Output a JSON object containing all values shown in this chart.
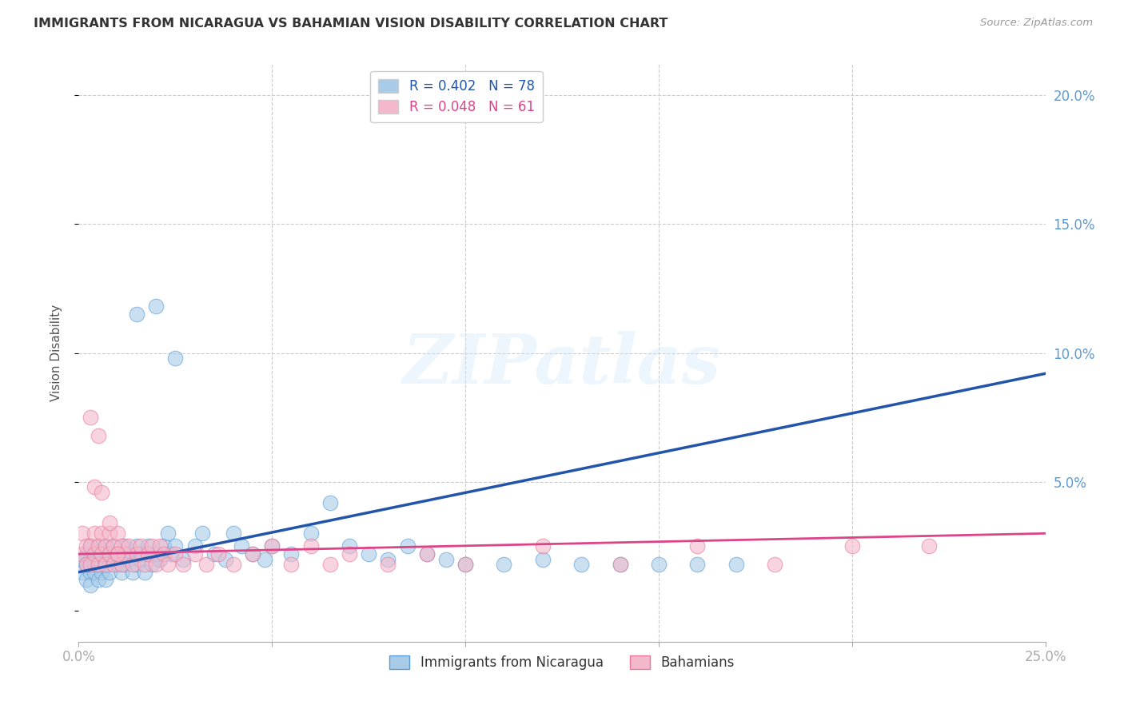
{
  "title": "IMMIGRANTS FROM NICARAGUA VS BAHAMIAN VISION DISABILITY CORRELATION CHART",
  "source": "Source: ZipAtlas.com",
  "ylabel": "Vision Disability",
  "xlim": [
    0.0,
    0.25
  ],
  "ylim": [
    -0.012,
    0.212
  ],
  "blue_color": "#a8cce8",
  "blue_edge_color": "#5b9bd5",
  "pink_color": "#f4b8cc",
  "pink_edge_color": "#e87898",
  "blue_line_color": "#2255aa",
  "pink_line_color": "#dd4488",
  "watermark": "ZIPatlas",
  "background_color": "#ffffff",
  "grid_color": "#cccccc",
  "blue_x": [
    0.001,
    0.001,
    0.002,
    0.002,
    0.002,
    0.003,
    0.003,
    0.003,
    0.003,
    0.004,
    0.004,
    0.004,
    0.005,
    0.005,
    0.005,
    0.006,
    0.006,
    0.006,
    0.007,
    0.007,
    0.007,
    0.008,
    0.008,
    0.008,
    0.009,
    0.009,
    0.01,
    0.01,
    0.011,
    0.011,
    0.012,
    0.012,
    0.013,
    0.013,
    0.014,
    0.015,
    0.015,
    0.016,
    0.016,
    0.017,
    0.018,
    0.019,
    0.02,
    0.021,
    0.022,
    0.023,
    0.024,
    0.025,
    0.027,
    0.03,
    0.032,
    0.035,
    0.038,
    0.04,
    0.042,
    0.045,
    0.048,
    0.05,
    0.055,
    0.06,
    0.065,
    0.07,
    0.075,
    0.08,
    0.085,
    0.09,
    0.095,
    0.1,
    0.11,
    0.12,
    0.13,
    0.14,
    0.15,
    0.16,
    0.17,
    0.015,
    0.02,
    0.025
  ],
  "blue_y": [
    0.02,
    0.015,
    0.018,
    0.022,
    0.012,
    0.02,
    0.015,
    0.025,
    0.01,
    0.018,
    0.022,
    0.015,
    0.02,
    0.012,
    0.025,
    0.018,
    0.022,
    0.015,
    0.02,
    0.025,
    0.012,
    0.018,
    0.022,
    0.015,
    0.02,
    0.025,
    0.018,
    0.022,
    0.02,
    0.015,
    0.025,
    0.018,
    0.022,
    0.02,
    0.015,
    0.025,
    0.018,
    0.022,
    0.02,
    0.015,
    0.025,
    0.018,
    0.022,
    0.02,
    0.025,
    0.03,
    0.022,
    0.025,
    0.02,
    0.025,
    0.03,
    0.022,
    0.02,
    0.03,
    0.025,
    0.022,
    0.02,
    0.025,
    0.022,
    0.03,
    0.042,
    0.025,
    0.022,
    0.02,
    0.025,
    0.022,
    0.02,
    0.018,
    0.018,
    0.02,
    0.018,
    0.018,
    0.018,
    0.018,
    0.018,
    0.115,
    0.118,
    0.098
  ],
  "pink_x": [
    0.001,
    0.001,
    0.002,
    0.002,
    0.003,
    0.003,
    0.004,
    0.004,
    0.005,
    0.005,
    0.006,
    0.006,
    0.007,
    0.007,
    0.008,
    0.008,
    0.009,
    0.009,
    0.01,
    0.01,
    0.011,
    0.011,
    0.012,
    0.013,
    0.014,
    0.015,
    0.016,
    0.017,
    0.018,
    0.019,
    0.02,
    0.021,
    0.022,
    0.023,
    0.025,
    0.027,
    0.03,
    0.033,
    0.036,
    0.04,
    0.045,
    0.05,
    0.055,
    0.06,
    0.065,
    0.07,
    0.08,
    0.09,
    0.1,
    0.12,
    0.14,
    0.16,
    0.18,
    0.2,
    0.22,
    0.003,
    0.004,
    0.005,
    0.006,
    0.008,
    0.01
  ],
  "pink_y": [
    0.022,
    0.03,
    0.025,
    0.018,
    0.025,
    0.018,
    0.022,
    0.03,
    0.025,
    0.018,
    0.022,
    0.03,
    0.025,
    0.018,
    0.022,
    0.03,
    0.025,
    0.018,
    0.022,
    0.03,
    0.025,
    0.018,
    0.022,
    0.025,
    0.018,
    0.022,
    0.025,
    0.018,
    0.022,
    0.025,
    0.018,
    0.025,
    0.022,
    0.018,
    0.022,
    0.018,
    0.022,
    0.018,
    0.022,
    0.018,
    0.022,
    0.025,
    0.018,
    0.025,
    0.018,
    0.022,
    0.018,
    0.022,
    0.018,
    0.025,
    0.018,
    0.025,
    0.018,
    0.025,
    0.025,
    0.075,
    0.048,
    0.068,
    0.046,
    0.034,
    0.022
  ],
  "blue_trend_x": [
    0.0,
    0.25
  ],
  "blue_trend_y": [
    0.015,
    0.092
  ],
  "pink_trend_x": [
    0.0,
    0.25
  ],
  "pink_trend_y": [
    0.022,
    0.03
  ],
  "legend_r1": "R = 0.402",
  "legend_n1": "N = 78",
  "legend_r2": "R = 0.048",
  "legend_n2": "N = 61",
  "legend_item1": "Immigrants from Nicaragua",
  "legend_item2": "Bahamians"
}
